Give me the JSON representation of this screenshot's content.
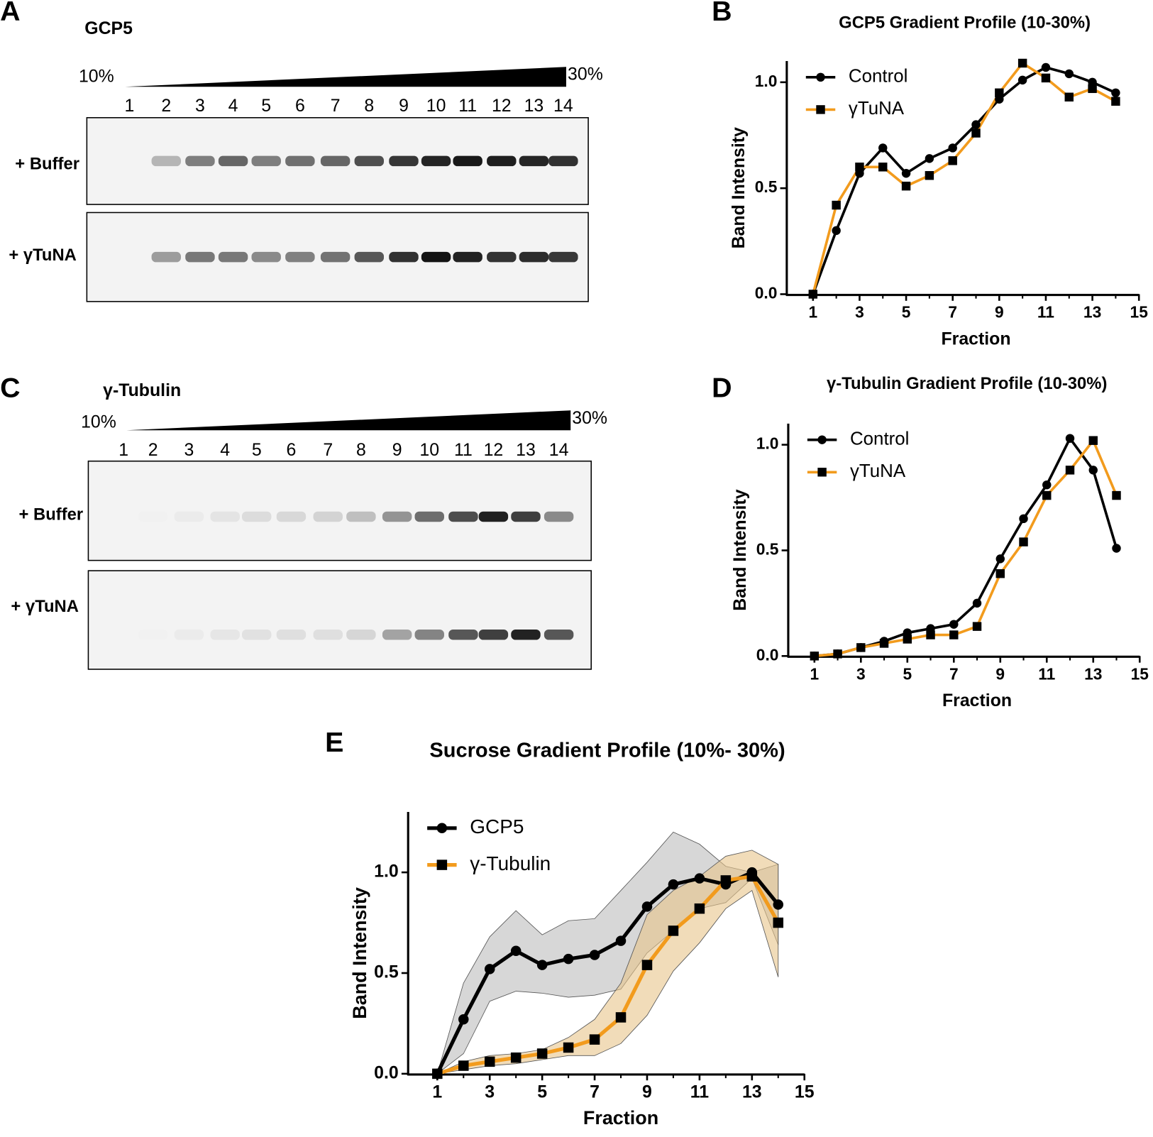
{
  "gels": [
    {
      "panel": "A",
      "title": "GCP5",
      "gradient_start": "10%",
      "gradient_end": "30%",
      "lanes": [
        "1",
        "2",
        "3",
        "4",
        "5",
        "6",
        "7",
        "8",
        "9",
        "10",
        "11",
        "12",
        "13",
        "14"
      ],
      "rows": [
        "+ Buffer",
        "+ γTuNA"
      ]
    },
    {
      "panel": "C",
      "title": "γ-Tubulin",
      "gradient_start": "10%",
      "gradient_end": "30%",
      "lanes": [
        "1",
        "2",
        "3",
        "4",
        "5",
        "6",
        "7",
        "8",
        "9",
        "10",
        "11",
        "12",
        "13",
        "14"
      ],
      "rows": [
        "+ Buffer",
        "+ γTuNA"
      ]
    }
  ],
  "chart_data": [
    {
      "type": "line",
      "panel": "B",
      "title": "GCP5 Gradient Profile (10-30%)",
      "x_label": "Fraction",
      "y_label": "Band Intensity",
      "legend": "upper left",
      "x": [
        1,
        2,
        3,
        4,
        5,
        6,
        7,
        8,
        9,
        10,
        11,
        12,
        13,
        14
      ],
      "xlim": [
        0,
        15
      ],
      "xticks": [
        1,
        3,
        5,
        7,
        9,
        11,
        13,
        15
      ],
      "ylim": [
        0,
        1.1
      ],
      "yticks": [
        {
          "value": 0,
          "label": "0.0"
        },
        {
          "value": 0.5,
          "label": "0.5"
        },
        {
          "value": 1,
          "label": "1.0"
        }
      ],
      "series": [
        {
          "name": "Control",
          "color": "#000000",
          "marker": "circle",
          "values": [
            0,
            0.3,
            0.57,
            0.69,
            0.57,
            0.64,
            0.69,
            0.8,
            0.92,
            1.01,
            1.07,
            1.04,
            1.0,
            0.95
          ]
        },
        {
          "name": "γTuNA",
          "color": "#f29b1d",
          "marker": "square",
          "values": [
            0,
            0.42,
            0.6,
            0.6,
            0.51,
            0.56,
            0.63,
            0.76,
            0.95,
            1.09,
            1.02,
            0.93,
            0.97,
            0.91
          ]
        }
      ]
    },
    {
      "type": "line",
      "panel": "D",
      "title": "γ-Tubulin Gradient Profile (10-30%)",
      "x_label": "Fraction",
      "y_label": "Band Intensity",
      "legend": "upper left",
      "x": [
        1,
        2,
        3,
        4,
        5,
        6,
        7,
        8,
        9,
        10,
        11,
        12,
        13,
        14
      ],
      "xlim": [
        0,
        15
      ],
      "xticks": [
        1,
        3,
        5,
        7,
        9,
        11,
        13,
        15
      ],
      "ylim": [
        0,
        1.1
      ],
      "yticks": [
        {
          "value": 0,
          "label": "0.0"
        },
        {
          "value": 0.5,
          "label": "0.5"
        },
        {
          "value": 1,
          "label": "1.0"
        }
      ],
      "series": [
        {
          "name": "Control",
          "color": "#000000",
          "marker": "circle",
          "values": [
            0,
            0.01,
            0.04,
            0.07,
            0.11,
            0.13,
            0.15,
            0.25,
            0.46,
            0.65,
            0.81,
            1.03,
            0.88,
            0.51
          ]
        },
        {
          "name": "γTuNA",
          "color": "#f29b1d",
          "marker": "square",
          "values": [
            0,
            0.01,
            0.04,
            0.06,
            0.08,
            0.1,
            0.1,
            0.14,
            0.39,
            0.54,
            0.76,
            0.88,
            1.02,
            0.76
          ]
        }
      ]
    },
    {
      "type": "line",
      "panel": "E",
      "title": "Sucrose Gradient Profile (10%- 30%)",
      "x_label": "Fraction",
      "y_label": "Band Intensity",
      "legend": "upper left",
      "x": [
        1,
        2,
        3,
        4,
        5,
        6,
        7,
        8,
        9,
        10,
        11,
        12,
        13,
        14
      ],
      "xlim": [
        0,
        15
      ],
      "xticks": [
        1,
        3,
        5,
        7,
        9,
        11,
        13,
        15
      ],
      "ylim": [
        0,
        1.3
      ],
      "yticks": [
        {
          "value": 0,
          "label": "0.0"
        },
        {
          "value": 0.5,
          "label": "0.5"
        },
        {
          "value": 1,
          "label": "1.0"
        }
      ],
      "series": [
        {
          "name": "GCP5",
          "color": "#000000",
          "marker": "circle",
          "band_color": "#bdbdbd",
          "values": [
            0,
            0.27,
            0.52,
            0.61,
            0.54,
            0.57,
            0.59,
            0.66,
            0.83,
            0.94,
            0.97,
            0.94,
            1.0,
            0.84
          ],
          "upper": [
            0,
            0.45,
            0.68,
            0.81,
            0.69,
            0.76,
            0.77,
            0.91,
            1.05,
            1.2,
            1.14,
            1.03,
            1.0,
            1.04
          ],
          "lower": [
            0,
            0.1,
            0.36,
            0.41,
            0.4,
            0.38,
            0.39,
            0.42,
            0.6,
            0.71,
            0.82,
            0.85,
            0.97,
            0.64
          ]
        },
        {
          "name": "γ-Tubulin",
          "color": "#f29b1d",
          "marker": "square",
          "band_color": "#e8c48a",
          "values": [
            0,
            0.04,
            0.06,
            0.08,
            0.1,
            0.13,
            0.17,
            0.28,
            0.54,
            0.71,
            0.82,
            0.96,
            0.98,
            0.75
          ],
          "upper": [
            0,
            0.06,
            0.09,
            0.1,
            0.12,
            0.18,
            0.27,
            0.45,
            0.79,
            0.91,
            0.98,
            1.08,
            1.11,
            1.04
          ],
          "lower": [
            0,
            0.02,
            0.04,
            0.05,
            0.07,
            0.09,
            0.09,
            0.15,
            0.29,
            0.51,
            0.65,
            0.82,
            0.91,
            0.48
          ]
        }
      ]
    }
  ]
}
